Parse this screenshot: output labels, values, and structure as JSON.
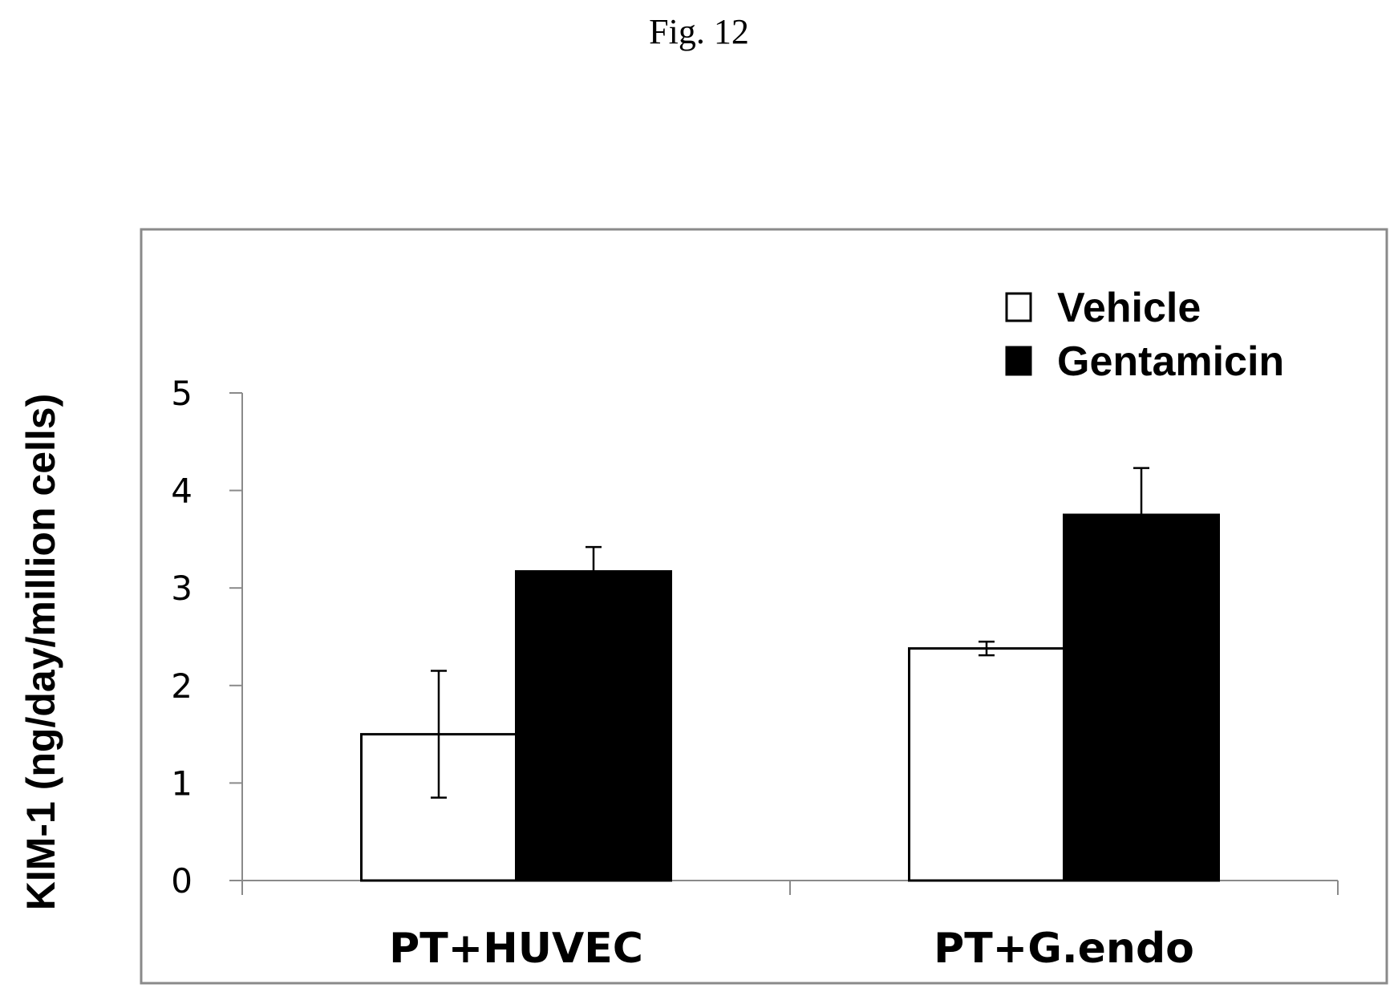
{
  "figure": {
    "title": "Fig. 12"
  },
  "chart_data": {
    "type": "bar",
    "title": "",
    "xlabel": "",
    "ylabel": "KIM-1 (ng/day/million cells)",
    "ylim": [
      0,
      5
    ],
    "yticks": [
      0,
      1,
      2,
      3,
      4,
      5
    ],
    "categories": [
      "PT+HUVEC",
      "PT+G.endo"
    ],
    "series": [
      {
        "name": "Vehicle",
        "values": [
          1.5,
          2.38
        ],
        "errors": [
          0.65,
          0.07
        ],
        "fill": "#ffffff"
      },
      {
        "name": "Gentamicin",
        "values": [
          3.17,
          3.75
        ],
        "errors": [
          0.25,
          0.48
        ],
        "fill": "#000000"
      }
    ],
    "legend": {
      "placement": "top-right"
    },
    "grid": false
  },
  "colors": {
    "frame": "#8a8a8a",
    "axis": "#8a8a8a",
    "bar_edge": "#000000"
  }
}
